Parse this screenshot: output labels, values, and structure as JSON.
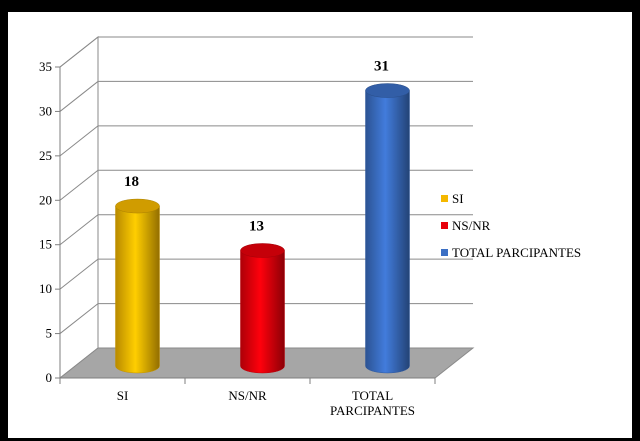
{
  "chart_data": {
    "type": "bar",
    "categories": [
      "SI",
      "NS/NR",
      "TOTAL PARCIPANTES"
    ],
    "category_labels": [
      [
        "SI"
      ],
      [
        "NS/NR"
      ],
      [
        "TOTAL",
        "PARCIPANTES"
      ]
    ],
    "values": [
      18,
      13,
      31
    ],
    "data_labels": [
      "18",
      "13",
      "31"
    ],
    "colors": [
      "#f5b800",
      "#e8000b",
      "#3b6fc4"
    ],
    "ylim": [
      0,
      35
    ],
    "yticks": [
      "0",
      "5",
      "10",
      "15",
      "20",
      "25",
      "30",
      "35"
    ],
    "grid": true,
    "legend": {
      "position": "right",
      "entries": [
        "SI",
        "NS/NR",
        "TOTAL PARCIPANTES"
      ]
    },
    "style": "3d-cylinder",
    "title": "",
    "xlabel": "",
    "ylabel": ""
  }
}
